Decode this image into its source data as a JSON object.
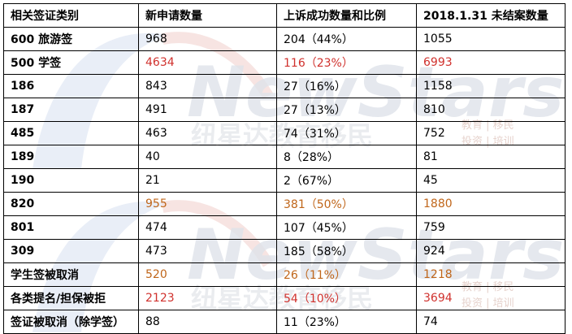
{
  "table": {
    "headers": [
      "相关签证类别",
      "新申请数量",
      "上诉成功数量和比例",
      "2018.1.31 未结案数量"
    ],
    "rows": [
      {
        "cat": "600 旅游签",
        "v1": "968",
        "v2": "204（44%）",
        "v3": "1055",
        "color": "#000000"
      },
      {
        "cat": "500 学签",
        "v1": "4634",
        "v2": "116（23%）",
        "v3": "6993",
        "color": "#d0312d"
      },
      {
        "cat": "186",
        "v1": "843",
        "v2": "27（16%）",
        "v3": "1158",
        "color": "#000000"
      },
      {
        "cat": "187",
        "v1": "491",
        "v2": "27（13%）",
        "v3": "810",
        "color": "#000000"
      },
      {
        "cat": "485",
        "v1": "463",
        "v2": "74（31%）",
        "v3": "752",
        "color": "#000000"
      },
      {
        "cat": "189",
        "v1": "40",
        "v2": "8（28%）",
        "v3": "81",
        "color": "#000000"
      },
      {
        "cat": "190",
        "v1": "21",
        "v2": "2（67%）",
        "v3": "45",
        "color": "#000000"
      },
      {
        "cat": "820",
        "v1": "955",
        "v2": "381（50%）",
        "v3": "1880",
        "color": "#c0661a"
      },
      {
        "cat": "801",
        "v1": "474",
        "v2": "107（45%）",
        "v3": "759",
        "color": "#000000"
      },
      {
        "cat": "309",
        "v1": "473",
        "v2": "185（58%）",
        "v3": "924",
        "color": "#000000"
      },
      {
        "cat": "学生签被取消",
        "v1": "520",
        "v2": "26（11%）",
        "v3": "1218",
        "color": "#c0661a"
      },
      {
        "cat": "各类提名/担保被拒",
        "v1": "2123",
        "v2": "54（10%）",
        "v3": "3694",
        "color": "#d0312d"
      },
      {
        "cat": "签证被取消（除学签）",
        "v1": "88",
        "v2": "11（23%）",
        "v3": "74",
        "color": "#000000"
      }
    ]
  },
  "watermark": {
    "brand": "NewStars",
    "cn_name": "纽星达教育移民",
    "tagline_line1": "教育 | 移民",
    "tagline_line2": "投资 | 培训"
  }
}
